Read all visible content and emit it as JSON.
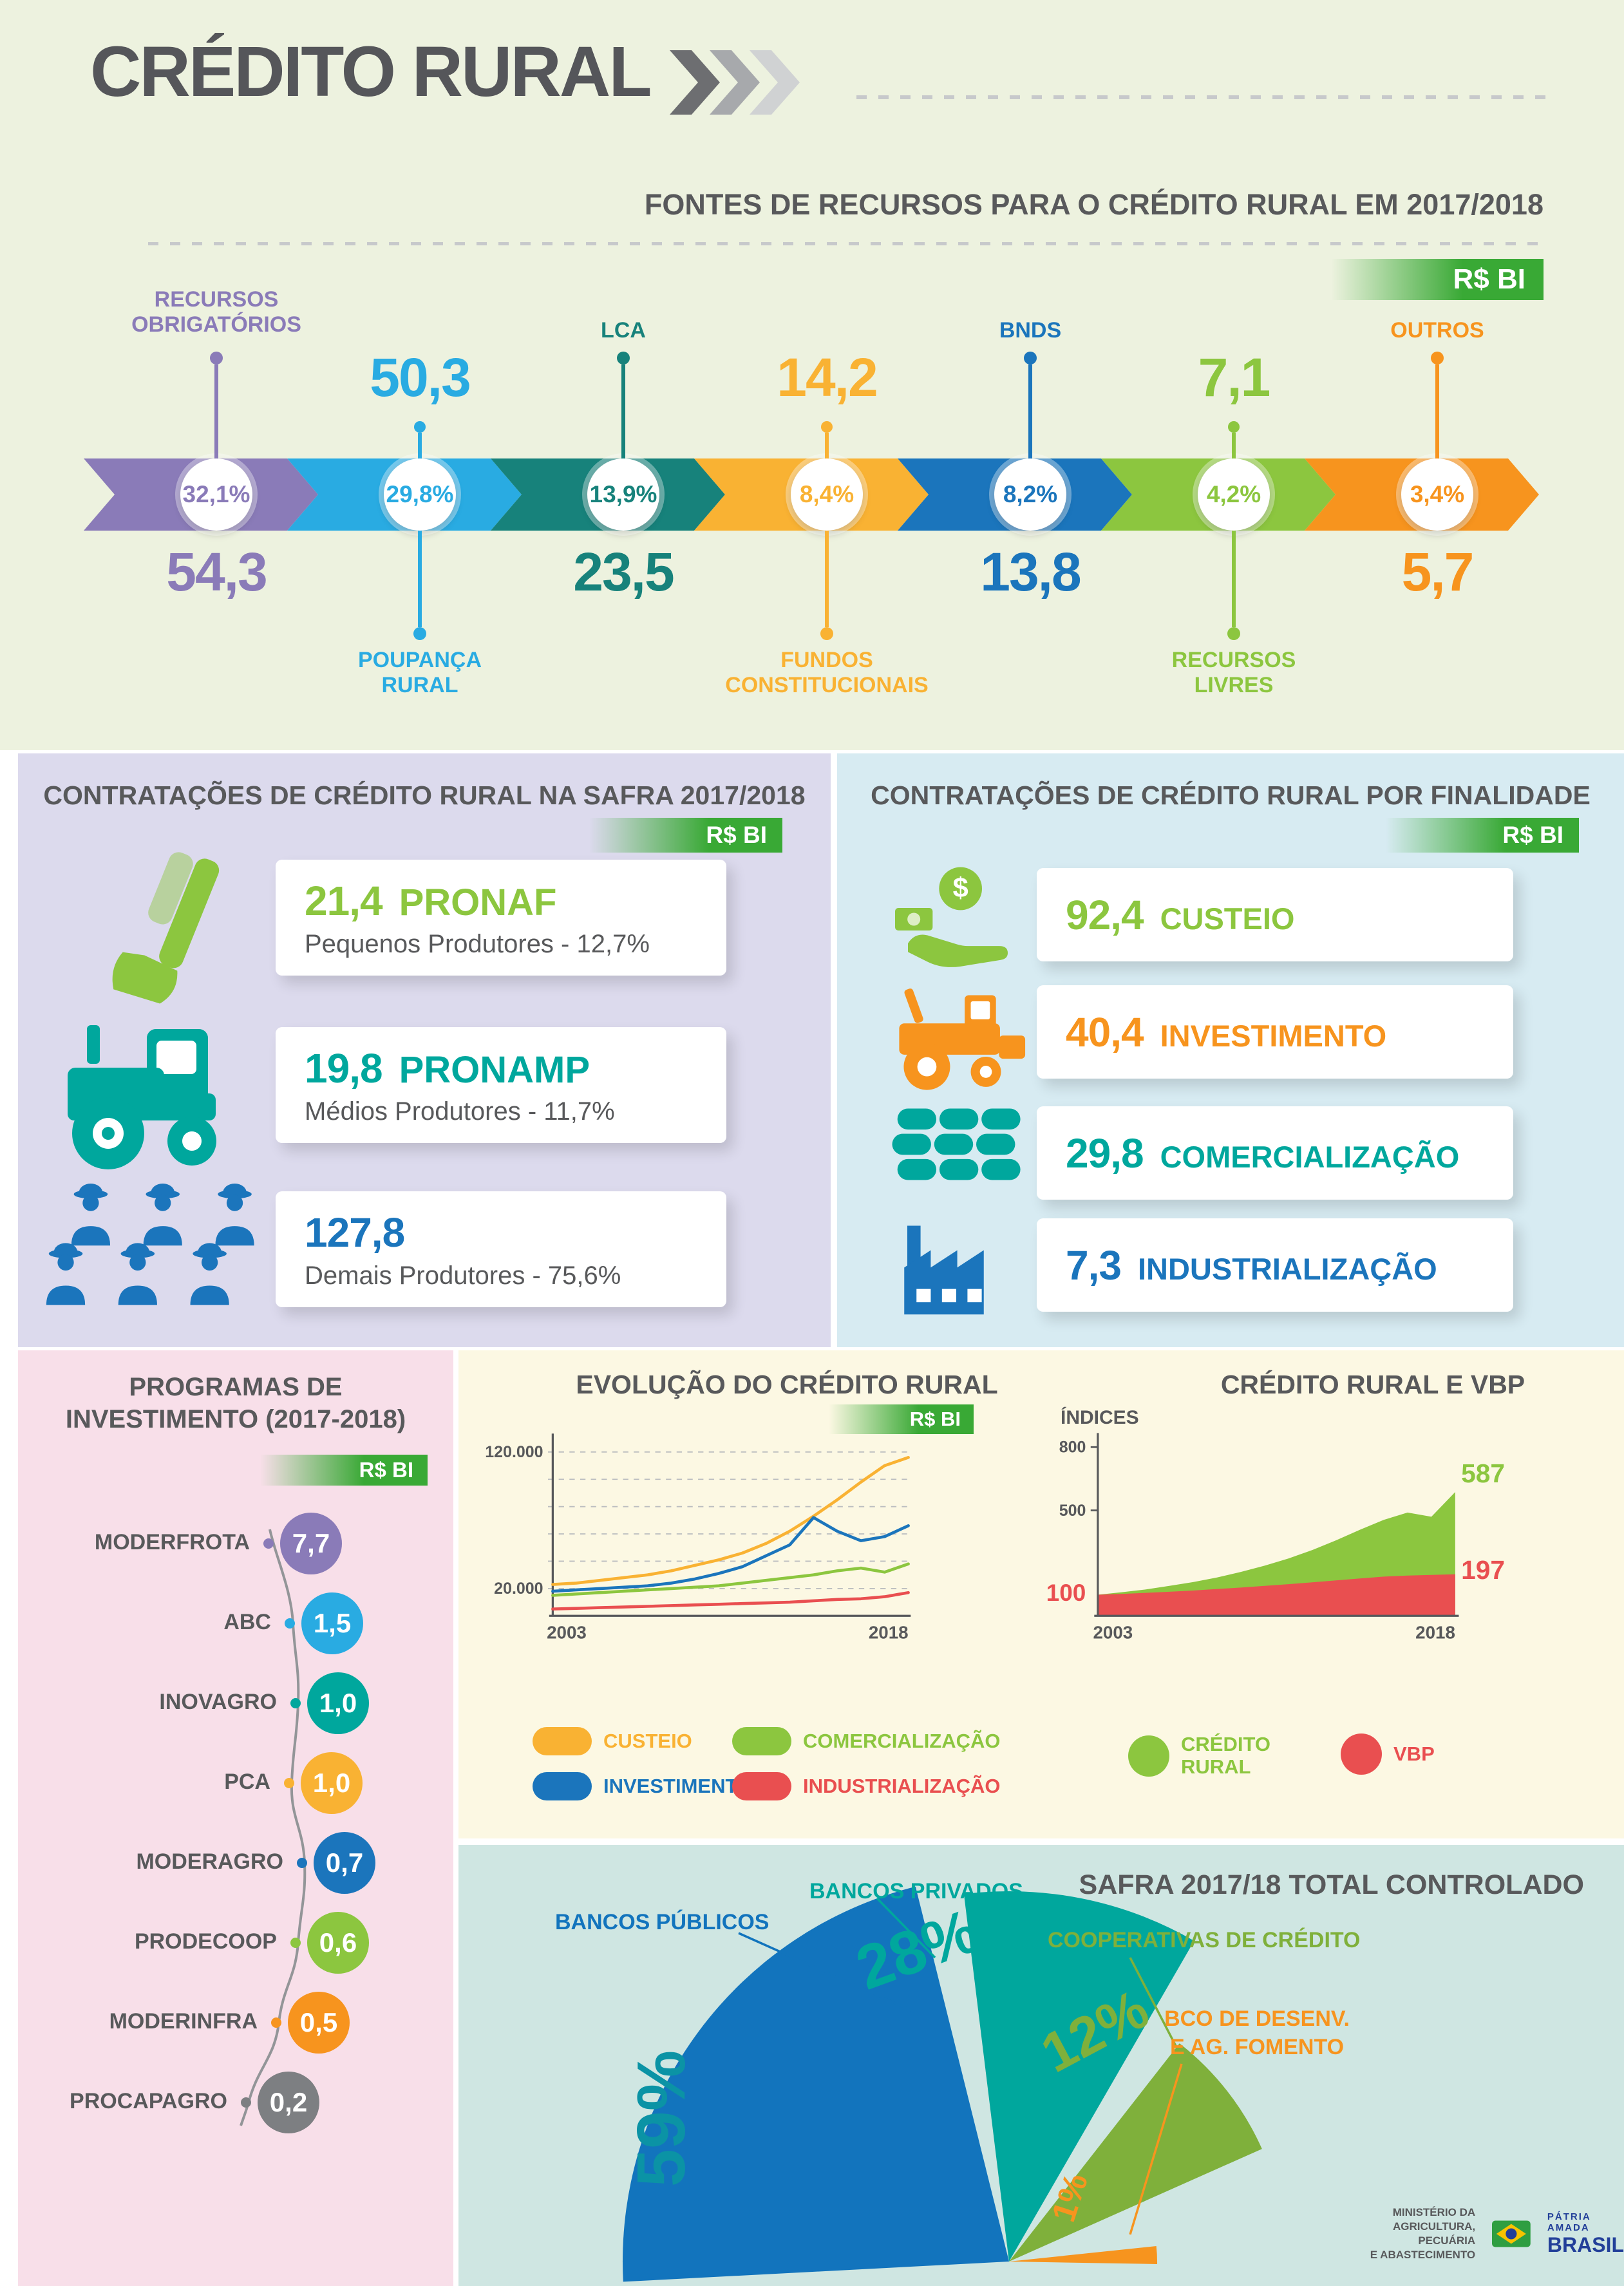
{
  "page": {
    "title": "CRÉDITO RURAL"
  },
  "fontes": {
    "title": "FONTES DE RECURSOS PARA O CRÉDITO RURAL EM 2017/2018",
    "unit": "R$ BI",
    "segments": [
      {
        "label": "RECURSOS OBRIGATÓRIOS",
        "pct": "32,1%",
        "value": "54,3",
        "color": "#8a7bb8"
      },
      {
        "label": "POUPANÇA RURAL",
        "pct": "29,8%",
        "value": "50,3",
        "color": "#29abe2"
      },
      {
        "label": "LCA",
        "pct": "13,9%",
        "value": "23,5",
        "color": "#17827b"
      },
      {
        "label": "FUNDOS CONSTITUCIONAIS",
        "pct": "8,4%",
        "value": "14,2",
        "color": "#f9b233"
      },
      {
        "label": "BNDS",
        "pct": "8,2%",
        "value": "13,8",
        "color": "#1b75bc"
      },
      {
        "label": "RECURSOS LIVRES",
        "pct": "4,2%",
        "value": "7,1",
        "color": "#8cc63f"
      },
      {
        "label": "OUTROS",
        "pct": "3,4%",
        "value": "5,7",
        "color": "#f7941e"
      }
    ]
  },
  "safra": {
    "title": "CONTRATAÇÕES DE CRÉDITO RURAL NA SAFRA 2017/2018",
    "unit": "R$ BI",
    "items": [
      {
        "value": "21,4",
        "name": "PRONAF",
        "desc": "Pequenos Produtores - 12,7%",
        "color": "#8cc63f",
        "icon": "hoe-icon"
      },
      {
        "value": "19,8",
        "name": "PRONAMP",
        "desc": "Médios Produtores - 11,7%",
        "color": "#00a79d",
        "icon": "tractor-icon"
      },
      {
        "value": "127,8",
        "name": "",
        "desc": "Demais Produtores - 75,6%",
        "color": "#1b75bc",
        "icon": "farmers-icon"
      }
    ]
  },
  "finalidade": {
    "title": "CONTRATAÇÕES DE CRÉDITO RURAL POR FINALIDADE",
    "unit": "R$ BI",
    "items": [
      {
        "value": "92,4",
        "name": "CUSTEIO",
        "color": "#8cc63f",
        "icon": "coin-hand-icon"
      },
      {
        "value": "40,4",
        "name": "INVESTIMENTO",
        "color": "#f7941e",
        "icon": "harvester-icon"
      },
      {
        "value": "29,8",
        "name": "COMERCIALIZAÇÃO",
        "color": "#00a79d",
        "icon": "grain-sacks-icon"
      },
      {
        "value": "7,3",
        "name": "INDUSTRIALIZAÇÃO",
        "color": "#1b75bc",
        "icon": "factory-icon"
      }
    ]
  },
  "programas": {
    "title_line1": "PROGRAMAS DE",
    "title_line2": "INVESTIMENTO (2017-2018)",
    "unit": "R$ BI",
    "items": [
      {
        "label": "MODERFROTA",
        "value": "7,7",
        "color": "#8a7bb8"
      },
      {
        "label": "ABC",
        "value": "1,5",
        "color": "#29abe2"
      },
      {
        "label": "INOVAGRO",
        "value": "1,0",
        "color": "#00a79d"
      },
      {
        "label": "PCA",
        "value": "1,0",
        "color": "#f9b233"
      },
      {
        "label": "MODERAGRO",
        "value": "0,7",
        "color": "#1b75bc"
      },
      {
        "label": "PRODECOOP",
        "value": "0,6",
        "color": "#8cc63f"
      },
      {
        "label": "MODERINFRA",
        "value": "0,5",
        "color": "#f7941e"
      },
      {
        "label": "PROCAPAGRO",
        "value": "0,2",
        "color": "#7d7f82"
      }
    ]
  },
  "chart_data": [
    {
      "type": "line",
      "title": "EVOLUÇÃO DO CRÉDITO RURAL",
      "unit": "R$ BI",
      "x_range": [
        2003,
        2018
      ],
      "xlabels": [
        "2003",
        "2018"
      ],
      "ylim": [
        0,
        130000
      ],
      "grid": "dashed",
      "gridlines": [
        20000,
        40000,
        60000,
        80000,
        100000,
        120000
      ],
      "ytick_labels": [
        {
          "value": 120000,
          "label": "120.000"
        },
        {
          "value": 20000,
          "label": "20.000"
        }
      ],
      "legend_position": "bottom",
      "series": [
        {
          "name": "CUSTEIO",
          "color": "#f9b233",
          "values": [
            23000,
            24000,
            26000,
            28000,
            30000,
            33000,
            37000,
            41000,
            46000,
            53000,
            62000,
            73000,
            85000,
            98000,
            110000,
            116000
          ]
        },
        {
          "name": "INVESTIMENTO",
          "color": "#1b75bc",
          "values": [
            18000,
            19000,
            20000,
            21000,
            22000,
            24000,
            27000,
            31000,
            36000,
            44000,
            52000,
            72000,
            62000,
            55000,
            58000,
            66000
          ]
        },
        {
          "name": "COMERCIALIZAÇÃO",
          "color": "#8cc63f",
          "values": [
            15000,
            16000,
            17000,
            18000,
            19000,
            20000,
            21000,
            22000,
            24000,
            26000,
            28000,
            30000,
            33000,
            35000,
            32000,
            38000
          ]
        },
        {
          "name": "INDUSTRIALIZAÇÃO",
          "color": "#e94f50",
          "values": [
            5000,
            5500,
            6000,
            6500,
            7000,
            7500,
            8000,
            8500,
            9000,
            9500,
            10000,
            11000,
            12000,
            12500,
            14000,
            17000
          ]
        }
      ]
    },
    {
      "type": "area",
      "title": "CRÉDITO RURAL E VBP",
      "ylabel": "ÍNDICES",
      "xlabels": [
        "2003",
        "2018"
      ],
      "ylim": [
        0,
        850
      ],
      "yticks": [
        {
          "value": 800,
          "label": "800"
        },
        {
          "value": 500,
          "label": "500"
        }
      ],
      "start_label": "100",
      "series": [
        {
          "name": "CRÉDITO RURAL",
          "color": "#8cc63f",
          "end_label": "587",
          "values": [
            100,
            112,
            125,
            142,
            160,
            182,
            208,
            238,
            272,
            312,
            358,
            408,
            455,
            490,
            470,
            587
          ]
        },
        {
          "name": "VBP",
          "color": "#e94f50",
          "end_label": "197",
          "values": [
            100,
            104,
            109,
            114,
            120,
            127,
            134,
            142,
            150,
            159,
            168,
            177,
            186,
            191,
            194,
            197
          ]
        }
      ]
    },
    {
      "type": "pie",
      "title": "SAFRA 2017/18 TOTAL CONTROLADO",
      "slices": [
        {
          "name": "BANCOS PÚBLICOS",
          "pct": "59%",
          "value": 59,
          "color": "#1274bd",
          "pct_color": "#0b93a5"
        },
        {
          "name": "BANCOS PRIVADOS",
          "pct": "28%",
          "value": 28,
          "color": "#00a79d",
          "pct_color": "#00a79d"
        },
        {
          "name": "COOPERATIVAS DE CRÉDITO",
          "pct": "12%",
          "value": 12,
          "color": "#7fb03b",
          "pct_color": "#7fb03b"
        },
        {
          "name": "BCO DE DESENV. E AG. FOMENTO",
          "pct": "1%",
          "value": 1,
          "color": "#f7941e",
          "pct_color": "#f7941e"
        }
      ]
    }
  ],
  "footer": {
    "ministry_lines": [
      "MINISTÉRIO DA",
      "AGRICULTURA, PECUÁRIA",
      "E ABASTECIMENTO"
    ],
    "brand_top": "PÁTRIA AMADA",
    "brand": "BRASIL"
  }
}
